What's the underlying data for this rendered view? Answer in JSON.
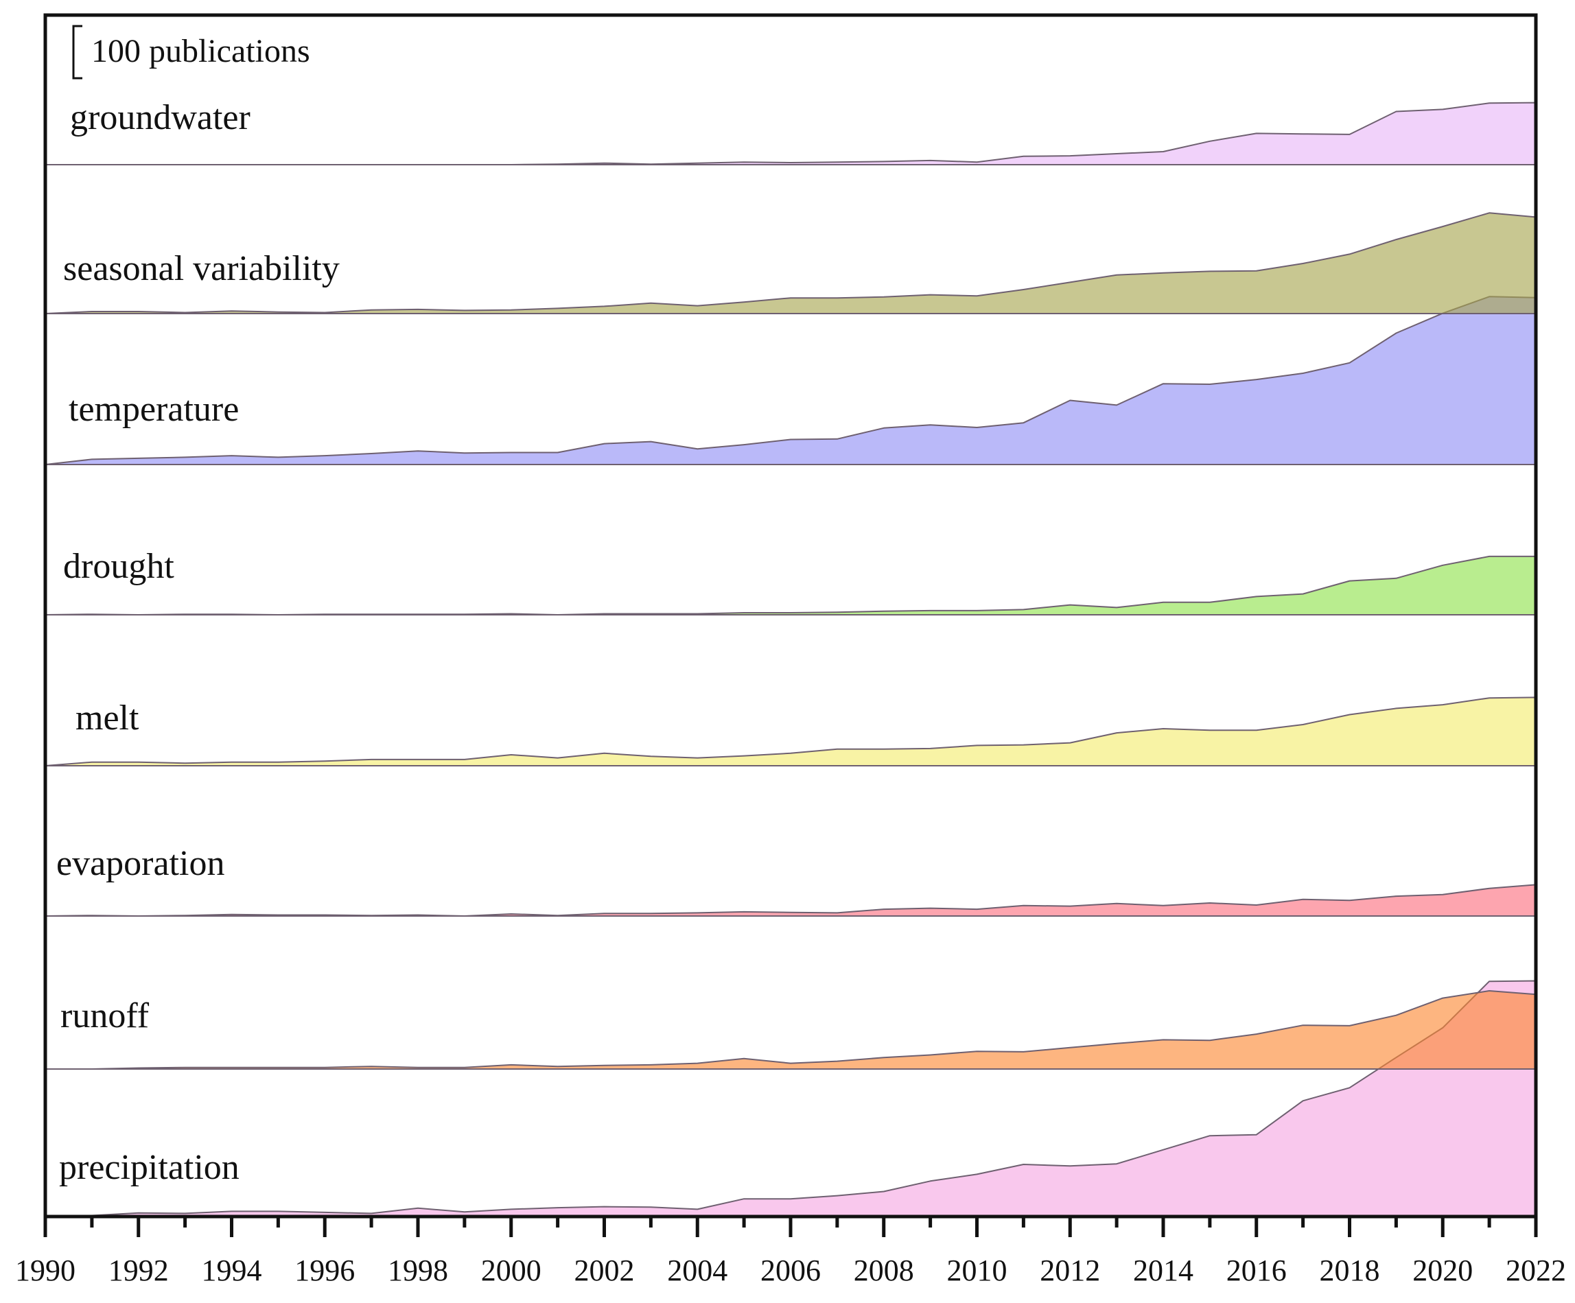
{
  "chart_data": {
    "type": "area",
    "title": "",
    "xlabel": "",
    "ylabel": "",
    "layout": "stacked ridgeline (each series drawn from its own baseline, overlapping upward)",
    "xlim": [
      1990,
      2022
    ],
    "x_tick_labels": [
      "1990",
      "1992",
      "1994",
      "1996",
      "1998",
      "2000",
      "2002",
      "2004",
      "2006",
      "2008",
      "2010",
      "2012",
      "2014",
      "2016",
      "2018",
      "2020",
      "2022"
    ],
    "scale_bar": {
      "label": "100 publications",
      "value": 100
    },
    "x": [
      1990,
      1991,
      1992,
      1993,
      1994,
      1995,
      1996,
      1997,
      1998,
      1999,
      2000,
      2001,
      2002,
      2003,
      2004,
      2005,
      2006,
      2007,
      2008,
      2009,
      2010,
      2011,
      2012,
      2013,
      2014,
      2015,
      2016,
      2017,
      2018,
      2019,
      2020,
      2021,
      2022
    ],
    "series": [
      {
        "name": "groundwater",
        "color": "#e9b6f7",
        "values": [
          0,
          0,
          0,
          0,
          0,
          0,
          0,
          0,
          0,
          0,
          0,
          1,
          3,
          1,
          3,
          5,
          4,
          5,
          6,
          8,
          5,
          16,
          17,
          21,
          25,
          45,
          60,
          59,
          58,
          102,
          106,
          118,
          119
        ]
      },
      {
        "name": "seasonal variability",
        "color": "#a7a54e",
        "values": [
          0,
          4,
          4,
          2,
          5,
          3,
          2,
          7,
          8,
          6,
          7,
          10,
          14,
          20,
          15,
          22,
          30,
          30,
          32,
          36,
          34,
          46,
          60,
          74,
          78,
          81,
          82,
          96,
          114,
          142,
          167,
          193,
          185
        ]
      },
      {
        "name": "temperature",
        "color": "#8f8ef6",
        "values": [
          0,
          10,
          12,
          14,
          17,
          14,
          17,
          21,
          26,
          22,
          23,
          23,
          40,
          44,
          30,
          38,
          48,
          49,
          70,
          76,
          71,
          80,
          123,
          114,
          155,
          154,
          163,
          175,
          195,
          252,
          290,
          322,
          320
        ]
      },
      {
        "name": "drought",
        "color": "#8ee24a",
        "values": [
          0,
          1,
          0,
          1,
          1,
          0,
          1,
          1,
          1,
          1,
          2,
          0,
          2,
          2,
          2,
          4,
          4,
          5,
          7,
          8,
          8,
          10,
          19,
          14,
          24,
          24,
          35,
          40,
          65,
          70,
          95,
          112,
          112
        ]
      },
      {
        "name": "melt",
        "color": "#f3ec6e",
        "values": [
          0,
          7,
          7,
          5,
          7,
          7,
          9,
          12,
          12,
          12,
          21,
          15,
          24,
          18,
          15,
          19,
          24,
          32,
          32,
          33,
          39,
          40,
          44,
          63,
          71,
          68,
          68,
          79,
          98,
          110,
          117,
          130,
          131
        ]
      },
      {
        "name": "evaporation",
        "color": "#fb6e7e",
        "values": [
          0,
          1,
          0,
          1,
          3,
          2,
          2,
          1,
          2,
          0,
          4,
          1,
          5,
          5,
          6,
          8,
          7,
          6,
          13,
          15,
          13,
          20,
          19,
          24,
          20,
          25,
          21,
          32,
          30,
          38,
          41,
          53,
          60
        ]
      },
      {
        "name": "runoff",
        "color": "#fb8832",
        "values": [
          0,
          0,
          2,
          3,
          3,
          3,
          3,
          5,
          3,
          3,
          8,
          5,
          7,
          8,
          11,
          20,
          11,
          15,
          22,
          27,
          34,
          33,
          41,
          49,
          56,
          55,
          67,
          84,
          83,
          103,
          136,
          150,
          143
        ]
      },
      {
        "name": "precipitation",
        "color": "#f5a6e2",
        "values": [
          0,
          2,
          7,
          6,
          10,
          10,
          8,
          6,
          16,
          9,
          14,
          17,
          19,
          18,
          14,
          34,
          34,
          40,
          48,
          68,
          81,
          100,
          97,
          101,
          128,
          155,
          157,
          222,
          247,
          305,
          362,
          451,
          452
        ]
      }
    ]
  }
}
